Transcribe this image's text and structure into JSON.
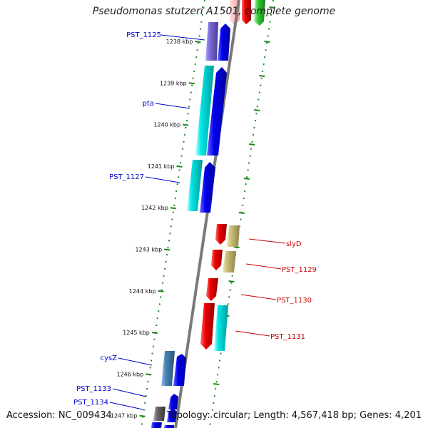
{
  "title": "Pseudomonas stutzeri A1501, complete genome",
  "footer": {
    "accession": "Accession: NC_009434",
    "topology": "Topology: circular; Length: 4,567,418 bp; Genes: 4,201"
  },
  "colors": {
    "backbone": "#808080",
    "ring": "#1a8a1a",
    "plus_label": "#0000cc",
    "minus_label": "#cc0000"
  },
  "kbp_ticks": [
    "1238 kbp",
    "1239 kbp",
    "1240 kbp",
    "1241 kbp",
    "1242 kbp",
    "1243 kbp",
    "1244 kbp",
    "1245 kbp",
    "1246 kbp",
    "1247 kbp"
  ],
  "gene_labels": {
    "plus": [
      "PST_1125",
      "pta",
      "PST_1127",
      "cysZ",
      "PST_1133",
      "PST_1134"
    ],
    "minus": [
      "slyD",
      "PST_1129",
      "PST_1130",
      "PST_1131"
    ]
  }
}
